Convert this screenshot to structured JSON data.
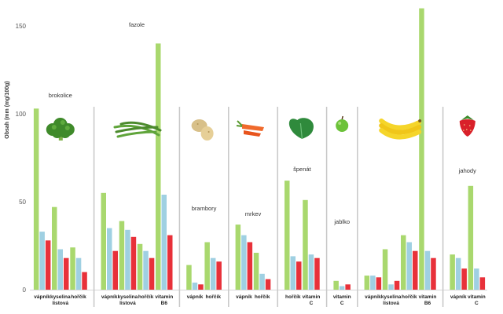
{
  "chart_data": {
    "type": "bar",
    "ylabel": "Obsah (mm (mg/100g)",
    "ylim": [
      0,
      150
    ],
    "yticks": [
      0,
      50,
      100,
      150
    ],
    "grid": false,
    "legend": "none",
    "colors": {
      "series1": "#a9d86e",
      "series2": "#9fd0e2",
      "series3": "#e8313a",
      "separator": "#c7c7c7"
    },
    "series": [
      {},
      {},
      {}
    ],
    "groups": [
      {
        "label": "brokolice",
        "icon": "broccoli-icon",
        "categories": [
          {
            "label": [
              "vápník"
            ],
            "values": [
              103,
              33,
              28
            ]
          },
          {
            "label": [
              "kyselina",
              "listová"
            ],
            "values": [
              47,
              23,
              18
            ]
          },
          {
            "label": [
              "hořčík"
            ],
            "values": [
              24,
              18,
              10
            ]
          }
        ]
      },
      {
        "label": "fazole",
        "icon": "green-beans-icon",
        "categories": [
          {
            "label": [
              "vápník"
            ],
            "values": [
              55,
              35,
              22
            ]
          },
          {
            "label": [
              "kyselina",
              "listová"
            ],
            "values": [
              39,
              34,
              30
            ]
          },
          {
            "label": [
              "hořčík"
            ],
            "values": [
              26,
              22,
              18
            ]
          },
          {
            "label": [
              "vitamin",
              "B6"
            ],
            "values": [
              140,
              54,
              31
            ]
          }
        ]
      },
      {
        "label": "brambory",
        "icon": "potato-icon",
        "categories": [
          {
            "label": [
              "vápník"
            ],
            "values": [
              14,
              4,
              3
            ]
          },
          {
            "label": [
              "hořčík"
            ],
            "values": [
              27,
              18,
              16
            ]
          }
        ]
      },
      {
        "label": "mrkev",
        "icon": "carrot-icon",
        "categories": [
          {
            "label": [
              "vápník"
            ],
            "values": [
              37,
              31,
              27
            ]
          },
          {
            "label": [
              "hořčík"
            ],
            "values": [
              21,
              9,
              6
            ]
          }
        ]
      },
      {
        "label": "špenát",
        "icon": "spinach-icon",
        "categories": [
          {
            "label": [
              "hořčík"
            ],
            "values": [
              62,
              19,
              16
            ]
          },
          {
            "label": [
              "vitamin",
              "C"
            ],
            "values": [
              51,
              20,
              18
            ]
          }
        ]
      },
      {
        "label": "jablko",
        "icon": "apple-icon",
        "categories": [
          {
            "label": [
              "vitamin",
              "C"
            ],
            "values": [
              5,
              2,
              3
            ]
          }
        ]
      },
      {
        "label": "",
        "icon": "banana-icon",
        "categories": [
          {
            "label": [
              "vápník"
            ],
            "values": [
              8,
              8,
              7
            ]
          },
          {
            "label": [
              "kyselina",
              "listová"
            ],
            "values": [
              23,
              3,
              5
            ]
          },
          {
            "label": [
              "hořčík"
            ],
            "values": [
              31,
              27,
              22
            ]
          },
          {
            "label": [
              "vitamin",
              "B6"
            ],
            "values": [
              160,
              22,
              18
            ]
          }
        ]
      },
      {
        "label": "jahody",
        "icon": "strawberry-icon",
        "categories": [
          {
            "label": [
              "vápník"
            ],
            "values": [
              20,
              18,
              12
            ]
          },
          {
            "label": [
              "vitamin",
              "C"
            ],
            "values": [
              59,
              12,
              7
            ]
          }
        ]
      }
    ]
  }
}
